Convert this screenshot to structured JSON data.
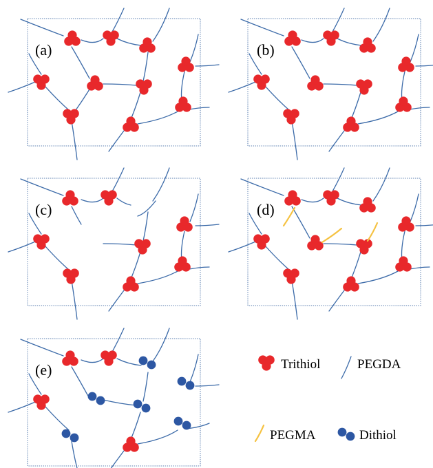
{
  "panels": [
    {
      "id": "a",
      "label": "(a)"
    },
    {
      "id": "b",
      "label": "(b)"
    },
    {
      "id": "c",
      "label": "(c)"
    },
    {
      "id": "d",
      "label": "(d)"
    },
    {
      "id": "e",
      "label": "(e)"
    }
  ],
  "legend": {
    "trithiol": "Trithiol",
    "pegda": "PEGDA",
    "pegma": "PEGMA",
    "dithiol": "Dithiol"
  },
  "colors": {
    "trithiol": "#e8282b",
    "dithiol": "#2d57a3",
    "pegda": "#3b6aa8",
    "pegma": "#f5c242",
    "frame": "#5b7fb0"
  },
  "icons": {
    "trithiol": "three-red-circles-icon",
    "dithiol": "two-blue-circles-icon",
    "pegda": "blue-line-icon",
    "pegma": "yellow-line-icon"
  }
}
